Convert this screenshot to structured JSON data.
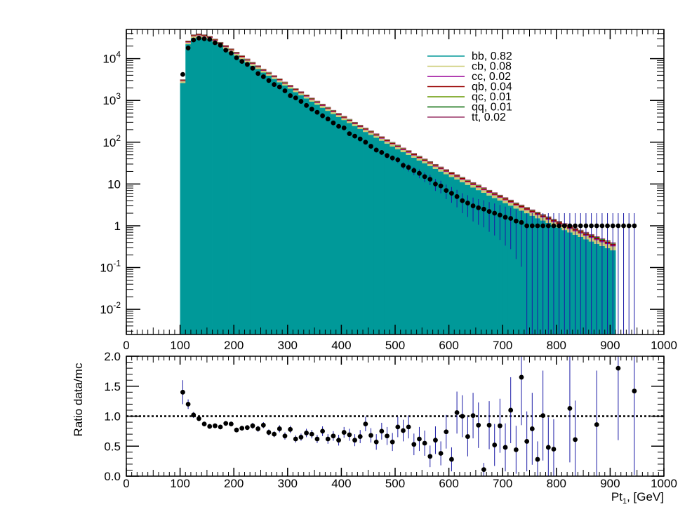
{
  "chart_data": [
    {
      "type": "bar",
      "stacked": true,
      "yscale": "log",
      "xlim": [
        0,
        1000
      ],
      "ylim": [
        0.0025,
        50000
      ],
      "xticks": [
        0,
        100,
        200,
        300,
        400,
        500,
        600,
        700,
        800,
        900,
        1000
      ],
      "xtick_labels": [
        "0",
        "100",
        "200",
        "300",
        "400",
        "500",
        "600",
        "700",
        "800",
        "900",
        "1000"
      ],
      "yticks": [
        0.01,
        0.1,
        1,
        10,
        100,
        1000,
        10000
      ],
      "ytick_labels": [
        "10^-2",
        "10^-1",
        "1",
        "10",
        "10^2",
        "10^3",
        "10^4"
      ],
      "bin_width": 10,
      "legend_position": "top-right",
      "legend": [
        {
          "label": "bb, 0.82",
          "color": "#009999"
        },
        {
          "label": "cb, 0.08",
          "color": "#cccc77"
        },
        {
          "label": "cc, 0.02",
          "color": "#990099"
        },
        {
          "label": "qb, 0.04",
          "color": "#990000"
        },
        {
          "label": "qc, 0.01",
          "color": "#669900"
        },
        {
          "label": "qq, 0.01",
          "color": "#006600"
        },
        {
          "label": "tt, 0.02",
          "color": "#993366"
        }
      ],
      "stack_fractions": {
        "bb": 0.82,
        "cb": 0.08,
        "cc": 0.02,
        "qb": 0.04,
        "qc": 0.01,
        "qq": 0.01,
        "tt": 0.02
      },
      "mc_total": [
        3200,
        27000,
        38000,
        40000,
        38000,
        35000,
        30000,
        25000,
        21000,
        17500,
        14500,
        12000,
        10000,
        8300,
        6900,
        5700,
        4800,
        4000,
        3350,
        2800,
        2350,
        1950,
        1650,
        1380,
        1160,
        980,
        830,
        700,
        590,
        500,
        425,
        360,
        305,
        260,
        222,
        190,
        162,
        138,
        118,
        101,
        87,
        74,
        64,
        55,
        47,
        40.5,
        35,
        30,
        26,
        22.5,
        19.5,
        17,
        14.7,
        12.7,
        11,
        9.6,
        8.3,
        7.2,
        6.3,
        5.5,
        4.8,
        4.2,
        3.6,
        3.2,
        2.8,
        2.45,
        2.15,
        1.9,
        1.67,
        1.47,
        1.3,
        1.15,
        1.02,
        0.9,
        0.8,
        0.71,
        0.63,
        0.56,
        0.5,
        0.45,
        0.4
      ],
      "data_points": [
        {
          "x": 105,
          "y": 4200
        },
        {
          "x": 115,
          "y": 18000
        },
        {
          "x": 125,
          "y": 28000
        },
        {
          "x": 135,
          "y": 31000
        },
        {
          "x": 145,
          "y": 30000
        },
        {
          "x": 155,
          "y": 29000
        },
        {
          "x": 165,
          "y": 24000
        },
        {
          "x": 175,
          "y": 21000
        },
        {
          "x": 185,
          "y": 16000
        },
        {
          "x": 195,
          "y": 13500
        },
        {
          "x": 205,
          "y": 10500
        },
        {
          "x": 215,
          "y": 8600
        },
        {
          "x": 225,
          "y": 7300
        },
        {
          "x": 235,
          "y": 5900
        },
        {
          "x": 245,
          "y": 4400
        },
        {
          "x": 255,
          "y": 3700
        },
        {
          "x": 265,
          "y": 3000
        },
        {
          "x": 275,
          "y": 2400
        },
        {
          "x": 285,
          "y": 2100
        },
        {
          "x": 295,
          "y": 1700
        },
        {
          "x": 305,
          "y": 1300
        },
        {
          "x": 315,
          "y": 1150
        },
        {
          "x": 325,
          "y": 950
        },
        {
          "x": 335,
          "y": 760
        },
        {
          "x": 345,
          "y": 620
        },
        {
          "x": 355,
          "y": 520
        },
        {
          "x": 365,
          "y": 430
        },
        {
          "x": 375,
          "y": 360
        },
        {
          "x": 385,
          "y": 290
        },
        {
          "x": 395,
          "y": 240
        },
        {
          "x": 405,
          "y": 220
        },
        {
          "x": 415,
          "y": 160
        },
        {
          "x": 425,
          "y": 140
        },
        {
          "x": 435,
          "y": 120
        },
        {
          "x": 445,
          "y": 100
        },
        {
          "x": 455,
          "y": 80
        },
        {
          "x": 465,
          "y": 65
        },
        {
          "x": 475,
          "y": 57
        },
        {
          "x": 485,
          "y": 48
        },
        {
          "x": 495,
          "y": 42
        },
        {
          "x": 505,
          "y": 38
        },
        {
          "x": 515,
          "y": 28
        },
        {
          "x": 525,
          "y": 25
        },
        {
          "x": 535,
          "y": 21
        },
        {
          "x": 545,
          "y": 18
        },
        {
          "x": 555,
          "y": 15
        },
        {
          "x": 565,
          "y": 13
        },
        {
          "x": 575,
          "y": 10
        },
        {
          "x": 585,
          "y": 9
        },
        {
          "x": 595,
          "y": 7
        },
        {
          "x": 605,
          "y": 6
        },
        {
          "x": 615,
          "y": 5
        },
        {
          "x": 625,
          "y": 4
        },
        {
          "x": 635,
          "y": 3.5
        },
        {
          "x": 645,
          "y": 3
        },
        {
          "x": 655,
          "y": 2.7
        },
        {
          "x": 665,
          "y": 2.5
        },
        {
          "x": 675,
          "y": 2.2
        },
        {
          "x": 685,
          "y": 2
        },
        {
          "x": 695,
          "y": 1.8
        },
        {
          "x": 705,
          "y": 1.6
        },
        {
          "x": 715,
          "y": 1.5
        },
        {
          "x": 725,
          "y": 1.3
        },
        {
          "x": 735,
          "y": 1.2
        },
        {
          "x": 745,
          "y": 1
        },
        {
          "x": 755,
          "y": 1
        },
        {
          "x": 765,
          "y": 1
        },
        {
          "x": 775,
          "y": 1
        },
        {
          "x": 785,
          "y": 1
        },
        {
          "x": 795,
          "y": 1
        },
        {
          "x": 805,
          "y": 1
        },
        {
          "x": 815,
          "y": 1
        },
        {
          "x": 825,
          "y": 1
        },
        {
          "x": 835,
          "y": 1
        },
        {
          "x": 845,
          "y": 1
        },
        {
          "x": 855,
          "y": 1
        },
        {
          "x": 865,
          "y": 1
        },
        {
          "x": 875,
          "y": 1
        },
        {
          "x": 885,
          "y": 1
        },
        {
          "x": 895,
          "y": 1
        },
        {
          "x": 905,
          "y": 1
        },
        {
          "x": 915,
          "y": 1
        },
        {
          "x": 925,
          "y": 1
        },
        {
          "x": 935,
          "y": 1
        },
        {
          "x": 945,
          "y": 1
        }
      ],
      "zero_bins": [
        685,
        725,
        765,
        775,
        785,
        795,
        815,
        835,
        855,
        865,
        875,
        885,
        895,
        905,
        915,
        925,
        935,
        945,
        955,
        965,
        975,
        985,
        995
      ]
    },
    {
      "type": "scatter",
      "ylabel": "Ratio data/mc",
      "xlabel": "Pt1, [GeV]",
      "xlim": [
        0,
        1000
      ],
      "ylim": [
        0,
        2
      ],
      "xticks": [
        0,
        100,
        200,
        300,
        400,
        500,
        600,
        700,
        800,
        900,
        1000
      ],
      "xtick_labels": [
        "0",
        "100",
        "200",
        "300",
        "400",
        "500",
        "600",
        "700",
        "800",
        "900",
        "1000"
      ],
      "yticks": [
        0,
        0.5,
        1,
        1.5,
        2
      ],
      "ytick_labels": [
        "0.0",
        "0.5",
        "1.0",
        "1.5",
        "2.0"
      ],
      "reference_line": 1,
      "points": [
        {
          "x": 105,
          "y": 1.4,
          "err": 0.2
        },
        {
          "x": 115,
          "y": 1.2,
          "err": 0.08
        },
        {
          "x": 125,
          "y": 1.02,
          "err": 0.05
        },
        {
          "x": 135,
          "y": 0.96,
          "err": 0.04
        },
        {
          "x": 145,
          "y": 0.87,
          "err": 0.04
        },
        {
          "x": 155,
          "y": 0.83,
          "err": 0.04
        },
        {
          "x": 165,
          "y": 0.84,
          "err": 0.04
        },
        {
          "x": 175,
          "y": 0.82,
          "err": 0.04
        },
        {
          "x": 185,
          "y": 0.88,
          "err": 0.04
        },
        {
          "x": 195,
          "y": 0.87,
          "err": 0.04
        },
        {
          "x": 205,
          "y": 0.77,
          "err": 0.04
        },
        {
          "x": 215,
          "y": 0.8,
          "err": 0.04
        },
        {
          "x": 225,
          "y": 0.81,
          "err": 0.04
        },
        {
          "x": 235,
          "y": 0.84,
          "err": 0.05
        },
        {
          "x": 245,
          "y": 0.79,
          "err": 0.05
        },
        {
          "x": 255,
          "y": 0.85,
          "err": 0.05
        },
        {
          "x": 265,
          "y": 0.73,
          "err": 0.05
        },
        {
          "x": 275,
          "y": 0.7,
          "err": 0.05
        },
        {
          "x": 285,
          "y": 0.79,
          "err": 0.06
        },
        {
          "x": 295,
          "y": 0.67,
          "err": 0.06
        },
        {
          "x": 305,
          "y": 0.78,
          "err": 0.06
        },
        {
          "x": 315,
          "y": 0.62,
          "err": 0.06
        },
        {
          "x": 325,
          "y": 0.65,
          "err": 0.06
        },
        {
          "x": 335,
          "y": 0.72,
          "err": 0.07
        },
        {
          "x": 345,
          "y": 0.7,
          "err": 0.07
        },
        {
          "x": 355,
          "y": 0.62,
          "err": 0.07
        },
        {
          "x": 365,
          "y": 0.75,
          "err": 0.08
        },
        {
          "x": 375,
          "y": 0.62,
          "err": 0.08
        },
        {
          "x": 385,
          "y": 0.67,
          "err": 0.08
        },
        {
          "x": 395,
          "y": 0.6,
          "err": 0.09
        },
        {
          "x": 405,
          "y": 0.73,
          "err": 0.09
        },
        {
          "x": 415,
          "y": 0.69,
          "err": 0.1
        },
        {
          "x": 425,
          "y": 0.6,
          "err": 0.1
        },
        {
          "x": 435,
          "y": 0.66,
          "err": 0.11
        },
        {
          "x": 445,
          "y": 0.87,
          "err": 0.12
        },
        {
          "x": 455,
          "y": 0.68,
          "err": 0.12
        },
        {
          "x": 465,
          "y": 0.57,
          "err": 0.13
        },
        {
          "x": 475,
          "y": 0.75,
          "err": 0.14
        },
        {
          "x": 485,
          "y": 0.67,
          "err": 0.15
        },
        {
          "x": 495,
          "y": 0.57,
          "err": 0.15
        },
        {
          "x": 505,
          "y": 0.82,
          "err": 0.17
        },
        {
          "x": 515,
          "y": 0.76,
          "err": 0.18
        },
        {
          "x": 525,
          "y": 0.82,
          "err": 0.19
        },
        {
          "x": 535,
          "y": 0.53,
          "err": 0.18
        },
        {
          "x": 545,
          "y": 0.62,
          "err": 0.2
        },
        {
          "x": 555,
          "y": 0.55,
          "err": 0.21
        },
        {
          "x": 565,
          "y": 0.33,
          "err": 0.18
        },
        {
          "x": 575,
          "y": 0.6,
          "err": 0.23
        },
        {
          "x": 585,
          "y": 0.38,
          "err": 0.2
        },
        {
          "x": 595,
          "y": 0.74,
          "err": 0.28
        },
        {
          "x": 605,
          "y": 0.28,
          "err": 0.2
        },
        {
          "x": 615,
          "y": 1.06,
          "err": 0.35
        },
        {
          "x": 625,
          "y": 1.0,
          "err": 0.35
        },
        {
          "x": 635,
          "y": 0.66,
          "err": 0.33
        },
        {
          "x": 645,
          "y": 1.01,
          "err": 0.38
        },
        {
          "x": 655,
          "y": 0.85,
          "err": 0.38
        },
        {
          "x": 665,
          "y": 0.11,
          "err": 0.11
        },
        {
          "x": 675,
          "y": 0.85,
          "err": 0.4
        },
        {
          "x": 685,
          "y": 0.52,
          "err": 0.35
        },
        {
          "x": 695,
          "y": 0.84,
          "err": 0.45
        },
        {
          "x": 705,
          "y": 0.48,
          "err": 0.4
        },
        {
          "x": 715,
          "y": 1.1,
          "err": 0.55
        },
        {
          "x": 725,
          "y": 0.44,
          "err": 0.4
        },
        {
          "x": 735,
          "y": 1.65,
          "err": 0.8
        },
        {
          "x": 745,
          "y": 0.58,
          "err": 0.5
        },
        {
          "x": 755,
          "y": 0.79,
          "err": 0.6
        },
        {
          "x": 765,
          "y": 0.28,
          "err": 0.3
        },
        {
          "x": 775,
          "y": 1.01,
          "err": 0.75
        },
        {
          "x": 785,
          "y": 0.48,
          "err": 0.5
        },
        {
          "x": 795,
          "y": 0.45,
          "err": 0.5
        },
        {
          "x": 825,
          "y": 1.13,
          "err": 0.9
        },
        {
          "x": 835,
          "y": 0.61,
          "err": 0.65
        },
        {
          "x": 875,
          "y": 0.86,
          "err": 0.9
        },
        {
          "x": 915,
          "y": 1.8,
          "err": 1.2
        },
        {
          "x": 945,
          "y": 1.42,
          "err": 1.4
        }
      ]
    }
  ]
}
